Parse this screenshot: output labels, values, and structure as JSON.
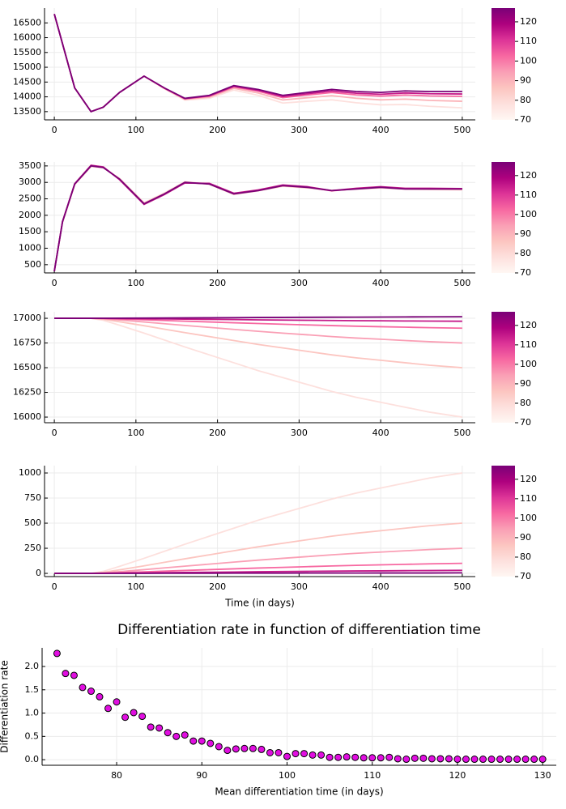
{
  "chart_data": [
    {
      "type": "line",
      "x": [
        0,
        10,
        25,
        45,
        60,
        80,
        110,
        135,
        160,
        190,
        220,
        250,
        280,
        310,
        340,
        370,
        400,
        430,
        460,
        500
      ],
      "series": [
        {
          "color": "#fde0dd",
          "values": [
            16800,
            15800,
            14300,
            13500,
            13650,
            14150,
            14700,
            14270,
            13890,
            13950,
            14230,
            14050,
            13790,
            13850,
            13900,
            13800,
            13730,
            13740,
            13680,
            13630
          ]
        },
        {
          "color": "#fbb4b9",
          "values": [
            16800,
            15800,
            14300,
            13500,
            13650,
            14150,
            14700,
            14282,
            13914,
            13990,
            14290,
            14130,
            13894,
            13970,
            14040,
            13952,
            13898,
            13924,
            13880,
            13850
          ]
        },
        {
          "color": "#f768a1",
          "values": [
            16800,
            15800,
            14300,
            13500,
            13650,
            14150,
            14700,
            14291,
            13932,
            14020,
            14335,
            14190,
            13972,
            14060,
            14145,
            14066,
            14024,
            14062,
            14030,
            14015
          ]
        },
        {
          "color": "#c51b8a",
          "values": [
            16800,
            15800,
            14300,
            13500,
            13650,
            14150,
            14700,
            14295,
            13941,
            14035,
            14357,
            14220,
            14011,
            14105,
            14197,
            14123,
            14087,
            14131,
            14105,
            14097
          ]
        },
        {
          "color": "#7a0177",
          "values": [
            16800,
            15800,
            14300,
            13500,
            13650,
            14150,
            14700,
            14300,
            13950,
            14050,
            14380,
            14250,
            14050,
            14150,
            14250,
            14180,
            14150,
            14200,
            14180,
            14180
          ]
        }
      ],
      "xlim": [
        -12,
        516
      ],
      "ylim": [
        13222,
        17000
      ],
      "xticks": [
        0,
        100,
        200,
        300,
        400,
        500
      ],
      "yticks": [
        13500,
        14000,
        14500,
        15000,
        15500,
        16000,
        16500
      ],
      "grid": true,
      "colorbar": {
        "lim": [
          70,
          127
        ],
        "ticks": [
          70,
          80,
          90,
          100,
          110,
          120
        ],
        "colors": [
          "#fff7f3",
          "#fde0dd",
          "#fcc5c0",
          "#fa9fb5",
          "#f768a1",
          "#dd3497",
          "#ae017e",
          "#7a0177"
        ]
      }
    },
    {
      "type": "line",
      "x": [
        0,
        10,
        25,
        45,
        60,
        80,
        110,
        135,
        160,
        190,
        220,
        250,
        280,
        310,
        340,
        370,
        400,
        430,
        460,
        500
      ],
      "series": [
        {
          "color": "#fde0dd",
          "values": [
            300,
            1780,
            2930,
            3480,
            3440,
            3120,
            2380,
            2680,
            3020,
            2940,
            2630,
            2740,
            2880,
            2830,
            2760,
            2790,
            2830,
            2790,
            2780,
            2770
          ]
        },
        {
          "color": "#fbb4b9",
          "values": [
            300,
            1790,
            2940,
            3490,
            3450,
            3110,
            2370,
            2660,
            3010,
            2950,
            2640,
            2750,
            2890,
            2840,
            2750,
            2800,
            2840,
            2800,
            2790,
            2790
          ]
        },
        {
          "color": "#f768a1",
          "values": [
            300,
            1800,
            2950,
            3510,
            3460,
            3090,
            2340,
            2640,
            2990,
            2960,
            2660,
            2760,
            2910,
            2860,
            2740,
            2810,
            2860,
            2810,
            2810,
            2800
          ]
        },
        {
          "color": "#c51b8a",
          "values": [
            300,
            1810,
            2960,
            3520,
            3470,
            3080,
            2330,
            2630,
            2980,
            2970,
            2670,
            2770,
            2920,
            2870,
            2750,
            2820,
            2870,
            2820,
            2820,
            2810
          ]
        },
        {
          "color": "#7a0177",
          "values": [
            300,
            1800,
            2950,
            3500,
            3450,
            3100,
            2350,
            2650,
            3000,
            2950,
            2650,
            2750,
            2900,
            2850,
            2750,
            2800,
            2850,
            2800,
            2800,
            2800
          ]
        }
      ],
      "xlim": [
        -12,
        516
      ],
      "ylim": [
        250,
        3620
      ],
      "xticks": [
        0,
        100,
        200,
        300,
        400,
        500
      ],
      "yticks": [
        500,
        1000,
        1500,
        2000,
        2500,
        3000,
        3500
      ],
      "grid": true,
      "colorbar": {
        "lim": [
          70,
          127
        ],
        "ticks": [
          70,
          80,
          90,
          100,
          110,
          120
        ],
        "colors": [
          "#fff7f3",
          "#fde0dd",
          "#fcc5c0",
          "#fa9fb5",
          "#f768a1",
          "#dd3497",
          "#ae017e",
          "#7a0177"
        ]
      }
    },
    {
      "type": "line",
      "x": [
        0,
        10,
        25,
        45,
        60,
        80,
        110,
        135,
        160,
        190,
        220,
        250,
        280,
        310,
        340,
        370,
        400,
        430,
        460,
        500
      ],
      "series": [
        {
          "color": "#fde0dd",
          "values": [
            17000,
            17000,
            17000,
            17000,
            16980,
            16930,
            16850,
            16780,
            16710,
            16630,
            16550,
            16470,
            16400,
            16330,
            16260,
            16200,
            16150,
            16100,
            16050,
            16000
          ]
        },
        {
          "color": "#fcc5c0",
          "values": [
            17000,
            17000,
            17000,
            17000,
            16990,
            16965,
            16925,
            16890,
            16855,
            16815,
            16775,
            16735,
            16700,
            16665,
            16630,
            16600,
            16575,
            16550,
            16525,
            16500
          ]
        },
        {
          "color": "#fa9fb5",
          "values": [
            17000,
            17000,
            17000,
            17000,
            16995,
            16983,
            16963,
            16945,
            16928,
            16908,
            16888,
            16868,
            16850,
            16833,
            16815,
            16800,
            16788,
            16775,
            16763,
            16750
          ]
        },
        {
          "color": "#f768a1",
          "values": [
            17000,
            17000,
            17000,
            17000,
            16998,
            16993,
            16985,
            16978,
            16971,
            16963,
            16955,
            16947,
            16940,
            16933,
            16926,
            16920,
            16915,
            16910,
            16905,
            16900
          ]
        },
        {
          "color": "#c51b8a",
          "values": [
            17000,
            17000,
            17000,
            17000,
            17000,
            16998,
            16996,
            16993,
            16991,
            16989,
            16987,
            16984,
            16982,
            16980,
            16978,
            16976,
            16975,
            16973,
            16972,
            16970
          ]
        },
        {
          "color": "#7a0177",
          "values": [
            17000,
            17000,
            17000,
            17000,
            17000,
            17001,
            17002,
            17003,
            17004,
            17005,
            17006,
            17008,
            17009,
            17010,
            17011,
            17012,
            17013,
            17014,
            17015,
            17016
          ]
        }
      ],
      "xlim": [
        -12,
        516
      ],
      "ylim": [
        15943,
        17066
      ],
      "xticks": [
        0,
        100,
        200,
        300,
        400,
        500
      ],
      "yticks": [
        16000,
        16250,
        16500,
        16750,
        17000
      ],
      "grid": true,
      "colorbar": {
        "lim": [
          70,
          127
        ],
        "ticks": [
          70,
          80,
          90,
          100,
          110,
          120
        ],
        "colors": [
          "#fff7f3",
          "#fde0dd",
          "#fcc5c0",
          "#fa9fb5",
          "#f768a1",
          "#dd3497",
          "#ae017e",
          "#7a0177"
        ]
      }
    },
    {
      "type": "line",
      "xlabel": "Time (in days)",
      "x": [
        0,
        10,
        25,
        45,
        60,
        80,
        110,
        135,
        160,
        190,
        220,
        250,
        280,
        310,
        340,
        370,
        400,
        430,
        460,
        500
      ],
      "series": [
        {
          "color": "#fde0dd",
          "values": [
            0,
            0,
            0,
            0,
            20,
            70,
            150,
            220,
            290,
            370,
            450,
            530,
            600,
            670,
            740,
            800,
            850,
            900,
            950,
            1000
          ]
        },
        {
          "color": "#fcc5c0",
          "values": [
            0,
            0,
            0,
            0,
            10,
            35,
            75,
            110,
            145,
            185,
            225,
            265,
            300,
            335,
            370,
            400,
            425,
            450,
            475,
            500
          ]
        },
        {
          "color": "#fa9fb5",
          "values": [
            0,
            0,
            0,
            0,
            5,
            17,
            37,
            55,
            72,
            92,
            112,
            132,
            150,
            167,
            185,
            200,
            212,
            225,
            237,
            250
          ]
        },
        {
          "color": "#f768a1",
          "values": [
            0,
            0,
            0,
            0,
            2,
            7,
            15,
            22,
            29,
            37,
            45,
            53,
            60,
            67,
            74,
            80,
            85,
            90,
            95,
            100
          ]
        },
        {
          "color": "#c51b8a",
          "values": [
            0,
            0,
            0,
            0,
            0,
            2,
            4,
            7,
            9,
            11,
            13,
            16,
            18,
            20,
            22,
            24,
            25,
            27,
            28,
            30
          ]
        },
        {
          "color": "#7a0177",
          "values": [
            0,
            0,
            0,
            0,
            0,
            0,
            0,
            1,
            1,
            1,
            2,
            2,
            2,
            3,
            3,
            3,
            4,
            4,
            4,
            5
          ]
        }
      ],
      "xlim": [
        -12,
        516
      ],
      "ylim": [
        -32,
        1073
      ],
      "xticks": [
        0,
        100,
        200,
        300,
        400,
        500
      ],
      "yticks": [
        0,
        250,
        500,
        750,
        1000
      ],
      "grid": true,
      "colorbar": {
        "lim": [
          70,
          127
        ],
        "ticks": [
          70,
          80,
          90,
          100,
          110,
          120
        ],
        "colors": [
          "#fff7f3",
          "#fde0dd",
          "#fcc5c0",
          "#fa9fb5",
          "#f768a1",
          "#dd3497",
          "#ae017e",
          "#7a0177"
        ]
      }
    },
    {
      "type": "scatter",
      "title": "Differentiation rate in function of differentiation time",
      "xlabel": "Mean differentiation time (in days)",
      "ylabel": "Differentiation rate",
      "color": "#e00ee0",
      "x": [
        73,
        74,
        75,
        76,
        77,
        78,
        79,
        80,
        81,
        82,
        83,
        84,
        85,
        86,
        87,
        88,
        89,
        90,
        91,
        92,
        93,
        94,
        95,
        96,
        97,
        98,
        99,
        100,
        101,
        102,
        103,
        104,
        105,
        106,
        107,
        108,
        109,
        110,
        111,
        112,
        113,
        114,
        115,
        116,
        117,
        118,
        119,
        120,
        121,
        122,
        123,
        124,
        125,
        126,
        127,
        128,
        129,
        130
      ],
      "values": [
        2.28,
        1.85,
        1.81,
        1.55,
        1.47,
        1.35,
        1.1,
        1.24,
        0.91,
        1.01,
        0.93,
        0.7,
        0.68,
        0.58,
        0.5,
        0.53,
        0.4,
        0.4,
        0.35,
        0.28,
        0.2,
        0.23,
        0.24,
        0.24,
        0.22,
        0.15,
        0.15,
        0.07,
        0.13,
        0.13,
        0.1,
        0.1,
        0.05,
        0.05,
        0.06,
        0.05,
        0.04,
        0.04,
        0.04,
        0.05,
        0.02,
        0.01,
        0.03,
        0.03,
        0.02,
        0.02,
        0.02,
        0.01,
        0.01,
        0.01,
        0.01,
        0.01,
        0.01,
        0.01,
        0.01,
        0.01,
        0.01,
        0.01
      ],
      "xlim": [
        71.25,
        131.6
      ],
      "ylim": [
        -0.12,
        2.4
      ],
      "xticks": [
        80,
        90,
        100,
        110,
        120,
        130
      ],
      "yticks": [
        {
          "value": 0,
          "label": "0.0"
        },
        0.5,
        {
          "value": 1,
          "label": "1.0"
        },
        1.5,
        {
          "value": 2,
          "label": "2.0"
        }
      ],
      "grid": true
    }
  ]
}
